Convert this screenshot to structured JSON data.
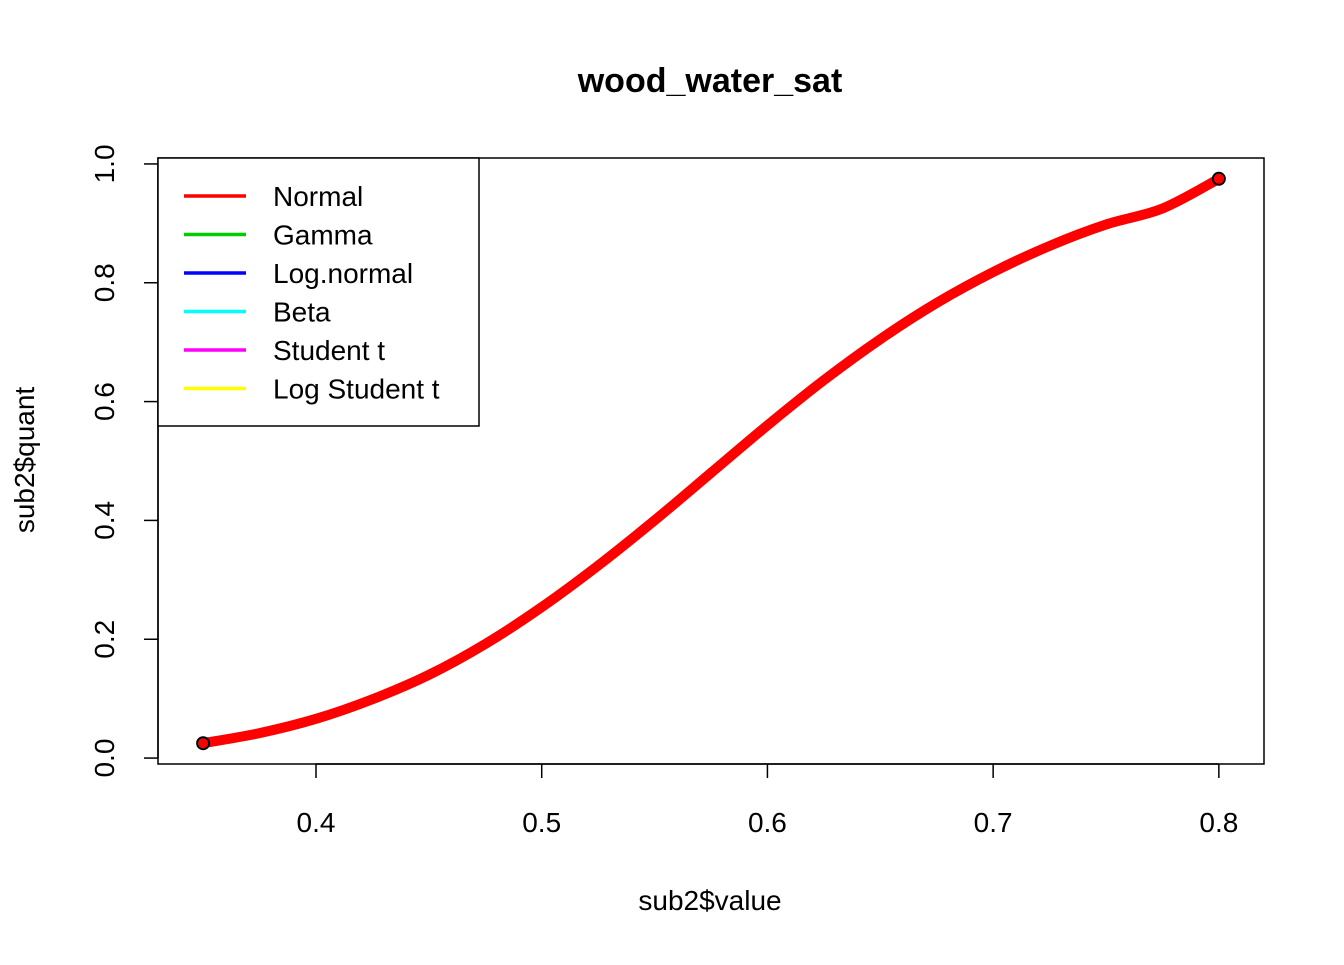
{
  "chart_data": {
    "type": "line",
    "title": "wood_water_sat",
    "xlabel": "sub2$value",
    "ylabel": "sub2$quant",
    "xlim": [
      0.33,
      0.82
    ],
    "ylim": [
      -0.01,
      1.01
    ],
    "x_ticks": [
      0.4,
      0.5,
      0.6,
      0.7,
      0.8
    ],
    "y_ticks": [
      0.0,
      0.2,
      0.4,
      0.6,
      0.8,
      1.0
    ],
    "x_tick_labels": [
      "0.4",
      "0.5",
      "0.6",
      "0.7",
      "0.8"
    ],
    "y_tick_labels": [
      "0.0",
      "0.2",
      "0.4",
      "0.6",
      "0.8",
      "1.0"
    ],
    "grid": false,
    "legend_position": "top-left",
    "points": {
      "x": [
        0.35,
        0.8
      ],
      "y": [
        0.025,
        0.975
      ]
    },
    "series": [
      {
        "name": "Normal",
        "color": "#ff0000",
        "x": [
          0.35,
          0.375,
          0.4,
          0.425,
          0.45,
          0.475,
          0.5,
          0.525,
          0.55,
          0.575,
          0.6,
          0.625,
          0.65,
          0.675,
          0.7,
          0.725,
          0.75,
          0.775,
          0.8
        ],
        "y": [
          0.025,
          0.042,
          0.066,
          0.099,
          0.14,
          0.192,
          0.254,
          0.324,
          0.4,
          0.48,
          0.56,
          0.636,
          0.705,
          0.766,
          0.818,
          0.862,
          0.898,
          0.925,
          0.975
        ]
      },
      {
        "name": "Gamma",
        "color": "#00cd00",
        "x": [],
        "y": []
      },
      {
        "name": "Log.normal",
        "color": "#0000ff",
        "x": [],
        "y": []
      },
      {
        "name": "Beta",
        "color": "#00ffff",
        "x": [],
        "y": []
      },
      {
        "name": "Student t",
        "color": "#ff00ff",
        "x": [],
        "y": []
      },
      {
        "name": "Log Student t",
        "color": "#ffff00",
        "x": [],
        "y": []
      }
    ]
  }
}
